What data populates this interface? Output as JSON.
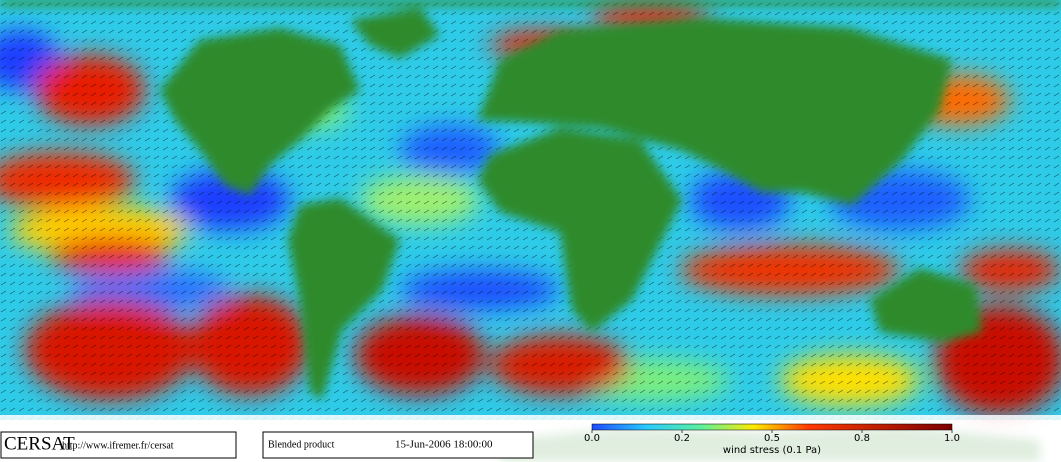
{
  "logo": "CERSAT",
  "url": "http://www.ifremer.fr/cersat",
  "product": "Blended product",
  "timestamp": "15-Jun-2006 18:00:00",
  "colorbar": {
    "ticks": [
      "0.0",
      "0.2",
      "0.5",
      "0.8",
      "1.0"
    ],
    "label": "wind stress (0.1 Pa)"
  }
}
